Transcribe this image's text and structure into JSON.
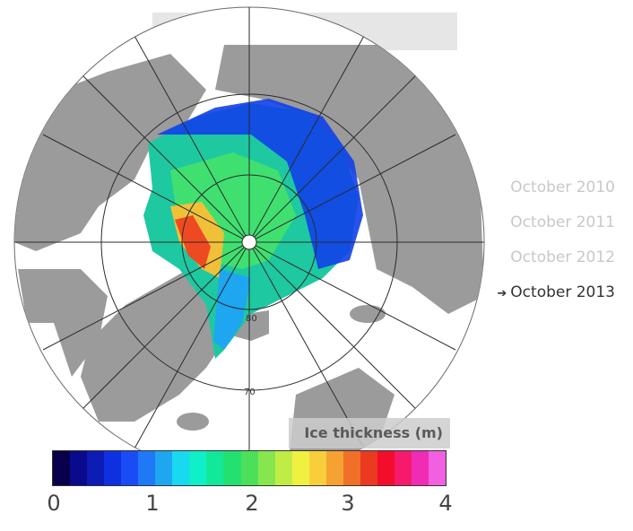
{
  "legend": {
    "items": [
      "October 2010",
      "October 2011",
      "October 2012",
      "October 2013"
    ],
    "active_index": 3
  },
  "scale": {
    "title": "Ice thickness (m)",
    "ticks": [
      "0",
      "1",
      "2",
      "3",
      "4"
    ],
    "min": 0,
    "max": 4,
    "colors": [
      "#08004a",
      "#0a0a8c",
      "#0d1cb5",
      "#0f30e0",
      "#1a4cf5",
      "#1f78f5",
      "#1ea6f0",
      "#18d9f0",
      "#10f0c8",
      "#12e89a",
      "#24e070",
      "#4ce05a",
      "#86e64e",
      "#c0ec46",
      "#eff040",
      "#f8cf3a",
      "#f5a232",
      "#f07028",
      "#ea3a20",
      "#f20d2a",
      "#f51a6a",
      "#f02cb4",
      "#f060e0"
    ]
  },
  "map": {
    "latitude_labels": [
      "80",
      "70"
    ],
    "colors": {
      "land": "#9b9b9b",
      "ocean": "#ffffff",
      "grid": "#2b2b2b"
    }
  }
}
